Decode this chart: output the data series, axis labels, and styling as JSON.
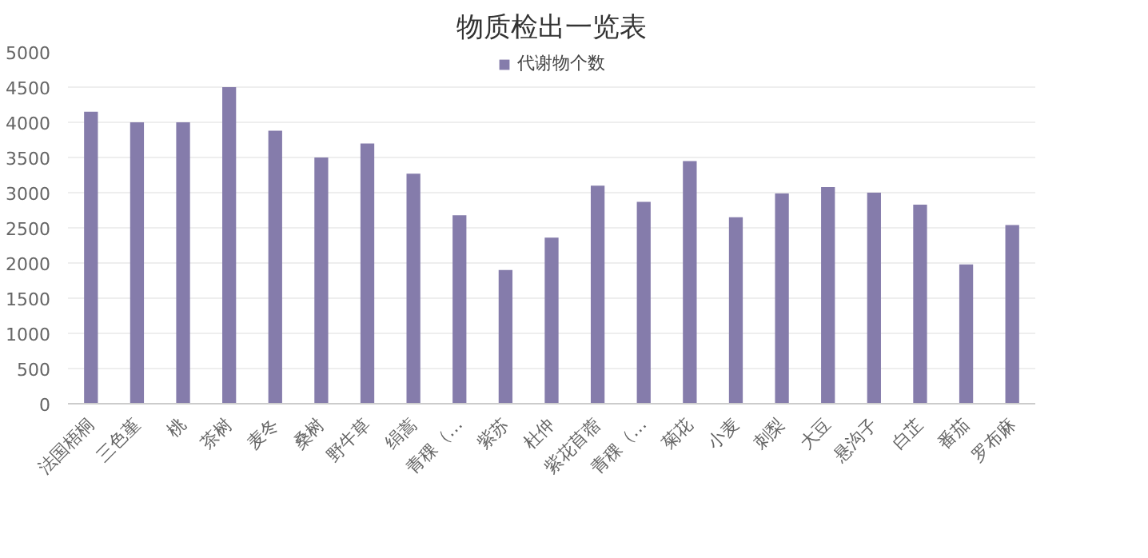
{
  "chart_data": {
    "type": "bar",
    "title": "物质检出一览表",
    "categories": [
      "法国梧桐",
      "三色堇",
      "桃",
      "茶树",
      "麦冬",
      "桑树",
      "野牛草",
      "绢蒿",
      "青稞（…",
      "紫苏",
      "杜仲",
      "紫花苜蓿",
      "青稞（…",
      "菊花",
      "小麦",
      "刺梨",
      "大豆",
      "悬沟子",
      "白芷",
      "番茄",
      "罗布麻"
    ],
    "series": [
      {
        "name": "代谢物个数",
        "color": "#857cab",
        "values": [
          4150,
          4000,
          4000,
          4500,
          3880,
          3500,
          3700,
          3270,
          2680,
          1900,
          2360,
          3100,
          2870,
          3450,
          2650,
          2990,
          3080,
          3000,
          2830,
          1980,
          2540
        ]
      }
    ],
    "ylim": [
      0,
      5000
    ],
    "yticks": [
      0,
      500,
      1000,
      1500,
      2000,
      2500,
      3000,
      3500,
      4000,
      4500,
      5000
    ],
    "grid": "y",
    "legend": "top"
  }
}
